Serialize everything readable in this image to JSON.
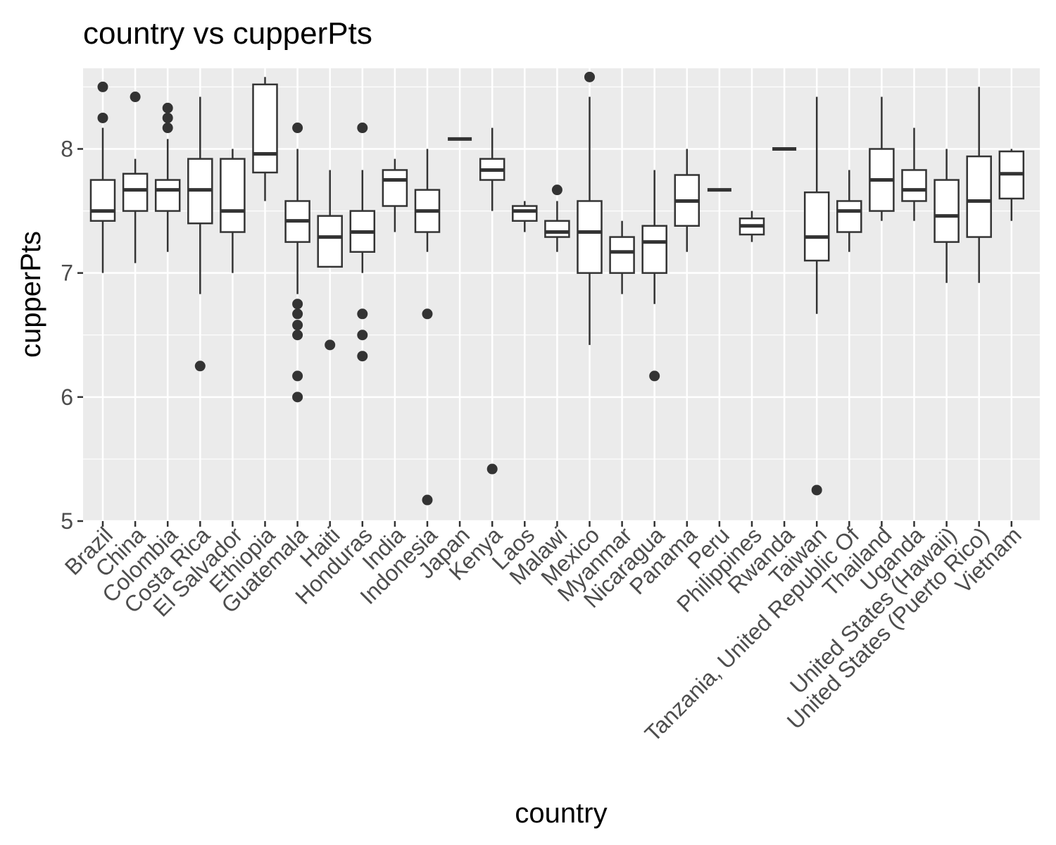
{
  "chart_data": {
    "type": "box",
    "title": "country vs cupperPts",
    "xlabel": "country",
    "ylabel": "cupperPts",
    "ylim": [
      5,
      8.65
    ],
    "yticks": [
      5,
      6,
      7,
      8
    ],
    "grid": true,
    "colors": {
      "panel": "#ebebeb",
      "grid": "#ffffff",
      "box_line": "#333333",
      "box_fill": "#ffffff",
      "tick_text": "#4d4d4d"
    },
    "categories": [
      "Brazil",
      "China",
      "Colombia",
      "Costa Rica",
      "El Salvador",
      "Ethiopia",
      "Guatemala",
      "Haiti",
      "Honduras",
      "India",
      "Indonesia",
      "Japan",
      "Kenya",
      "Laos",
      "Malawi",
      "Mexico",
      "Myanmar",
      "Nicaragua",
      "Panama",
      "Peru",
      "Philippines",
      "Rwanda",
      "Taiwan",
      "Tanzania, United Republic Of",
      "Thailand",
      "Uganda",
      "United States (Hawaii)",
      "United States (Puerto Rico)",
      "Vietnam"
    ],
    "boxes": [
      {
        "min": 7.0,
        "q1": 7.42,
        "median": 7.5,
        "q3": 7.75,
        "max": 8.17,
        "outliers": [
          8.5,
          8.25
        ]
      },
      {
        "min": 7.08,
        "q1": 7.5,
        "median": 7.67,
        "q3": 7.8,
        "max": 7.92,
        "outliers": [
          8.42
        ]
      },
      {
        "min": 7.17,
        "q1": 7.5,
        "median": 7.67,
        "q3": 7.75,
        "max": 8.08,
        "outliers": [
          8.33,
          8.25,
          8.17
        ]
      },
      {
        "min": 6.83,
        "q1": 7.4,
        "median": 7.67,
        "q3": 7.92,
        "max": 8.42,
        "outliers": [
          6.25
        ]
      },
      {
        "min": 7.0,
        "q1": 7.33,
        "median": 7.5,
        "q3": 7.92,
        "max": 8.0,
        "outliers": []
      },
      {
        "min": 7.58,
        "q1": 7.81,
        "median": 7.96,
        "q3": 8.52,
        "max": 8.58,
        "outliers": []
      },
      {
        "min": 6.83,
        "q1": 7.25,
        "median": 7.42,
        "q3": 7.58,
        "max": 8.0,
        "outliers": [
          8.17,
          6.75,
          6.67,
          6.58,
          6.5,
          6.17,
          6.0
        ]
      },
      {
        "min": 7.05,
        "q1": 7.05,
        "median": 7.29,
        "q3": 7.46,
        "max": 7.83,
        "outliers": [
          6.42
        ]
      },
      {
        "min": 7.0,
        "q1": 7.17,
        "median": 7.33,
        "q3": 7.5,
        "max": 7.83,
        "outliers": [
          8.17,
          6.67,
          6.5,
          6.33
        ]
      },
      {
        "min": 7.33,
        "q1": 7.54,
        "median": 7.75,
        "q3": 7.83,
        "max": 7.92,
        "outliers": []
      },
      {
        "min": 7.17,
        "q1": 7.33,
        "median": 7.5,
        "q3": 7.67,
        "max": 8.0,
        "outliers": [
          6.67,
          5.17
        ]
      },
      {
        "min": 8.08,
        "q1": 8.08,
        "median": 8.08,
        "q3": 8.08,
        "max": 8.08,
        "outliers": []
      },
      {
        "min": 7.5,
        "q1": 7.75,
        "median": 7.83,
        "q3": 7.92,
        "max": 8.17,
        "outliers": [
          5.42
        ]
      },
      {
        "min": 7.33,
        "q1": 7.42,
        "median": 7.5,
        "q3": 7.54,
        "max": 7.58,
        "outliers": []
      },
      {
        "min": 7.17,
        "q1": 7.29,
        "median": 7.33,
        "q3": 7.42,
        "max": 7.58,
        "outliers": [
          7.67
        ]
      },
      {
        "min": 6.42,
        "q1": 7.0,
        "median": 7.33,
        "q3": 7.58,
        "max": 8.42,
        "outliers": [
          8.58
        ]
      },
      {
        "min": 6.83,
        "q1": 7.0,
        "median": 7.17,
        "q3": 7.29,
        "max": 7.42,
        "outliers": []
      },
      {
        "min": 6.75,
        "q1": 7.0,
        "median": 7.25,
        "q3": 7.38,
        "max": 7.83,
        "outliers": [
          6.17
        ]
      },
      {
        "min": 7.17,
        "q1": 7.38,
        "median": 7.58,
        "q3": 7.79,
        "max": 8.0,
        "outliers": []
      },
      {
        "min": 7.67,
        "q1": 7.67,
        "median": 7.67,
        "q3": 7.67,
        "max": 7.67,
        "outliers": []
      },
      {
        "min": 7.25,
        "q1": 7.31,
        "median": 7.38,
        "q3": 7.44,
        "max": 7.5,
        "outliers": []
      },
      {
        "min": 8.0,
        "q1": 8.0,
        "median": 8.0,
        "q3": 8.0,
        "max": 8.0,
        "outliers": []
      },
      {
        "min": 6.67,
        "q1": 7.1,
        "median": 7.29,
        "q3": 7.65,
        "max": 8.42,
        "outliers": [
          5.25
        ]
      },
      {
        "min": 7.17,
        "q1": 7.33,
        "median": 7.5,
        "q3": 7.58,
        "max": 7.83,
        "outliers": []
      },
      {
        "min": 7.42,
        "q1": 7.5,
        "median": 7.75,
        "q3": 8.0,
        "max": 8.42,
        "outliers": []
      },
      {
        "min": 7.42,
        "q1": 7.58,
        "median": 7.67,
        "q3": 7.83,
        "max": 8.17,
        "outliers": []
      },
      {
        "min": 6.92,
        "q1": 7.25,
        "median": 7.46,
        "q3": 7.75,
        "max": 8.0,
        "outliers": []
      },
      {
        "min": 6.92,
        "q1": 7.29,
        "median": 7.58,
        "q3": 7.94,
        "max": 8.5,
        "outliers": []
      },
      {
        "min": 7.42,
        "q1": 7.6,
        "median": 7.8,
        "q3": 7.98,
        "max": 8.0,
        "outliers": []
      }
    ]
  }
}
